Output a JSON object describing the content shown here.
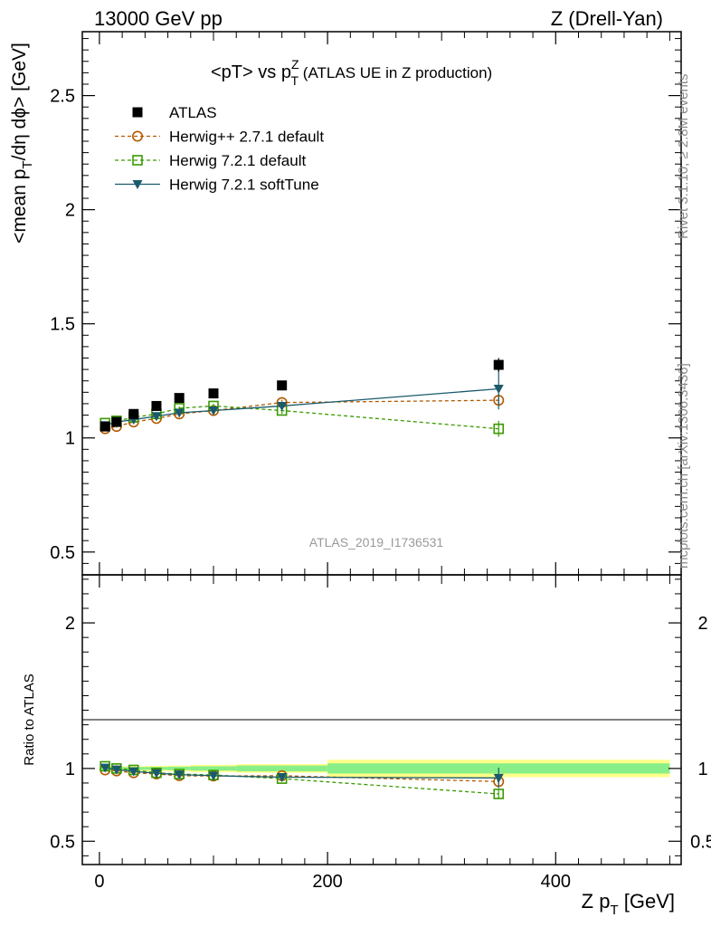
{
  "header": {
    "left": "13000 GeV pp",
    "right": "Z (Drell-Yan)"
  },
  "side_text": {
    "rivet": "Rivet 3.1.10, ≥ 2.8M events",
    "mcplots": "mcplots.cern.ch [arXiv:1306.3436]"
  },
  "chart_data": {
    "type": "scatter",
    "title_main": "<pT> vs p",
    "title_sup": "Z",
    "title_sub": "T",
    "title_paren": " (ATLAS UE in Z production)",
    "watermark": "ATLAS_2019_I1736531",
    "ylabel": {
      "pre": "<mean p",
      "sub": "T",
      "post": "/dη dϕ> [GeV]"
    },
    "ratio_ylabel": "Ratio to ATLAS",
    "xlabel": {
      "pre": "Z p",
      "sub": "T",
      "post": " [GeV]"
    },
    "xlim": [
      -15,
      510
    ],
    "ylim": [
      0.4,
      2.78
    ],
    "ratio_ylim": [
      0.34,
      2.33
    ],
    "x_ticks": [
      0,
      200,
      400
    ],
    "x_tick_labels": [
      "0",
      "200",
      "400"
    ],
    "y_ticks": [
      0.5,
      1,
      1.5,
      2,
      2.5
    ],
    "y_tick_labels": [
      "0.5",
      "1",
      "1.5",
      "2",
      "2.5"
    ],
    "ratio_ticks": [
      0.5,
      1,
      2
    ],
    "ratio_tick_labels": [
      "0.5",
      "1",
      "2"
    ],
    "x": [
      5,
      15,
      30,
      50,
      70,
      100,
      160,
      350
    ],
    "x_bins": [
      [
        0,
        10
      ],
      [
        10,
        20
      ],
      [
        20,
        40
      ],
      [
        40,
        60
      ],
      [
        60,
        80
      ],
      [
        80,
        120
      ],
      [
        120,
        200
      ],
      [
        200,
        500
      ]
    ],
    "data_band": {
      "stat": [
        0.01,
        0.01,
        0.01,
        0.01,
        0.012,
        0.015,
        0.02,
        0.035
      ],
      "total": [
        0.015,
        0.015,
        0.015,
        0.018,
        0.02,
        0.025,
        0.03,
        0.06
      ]
    },
    "series": [
      {
        "name": "ATLAS",
        "values": [
          1.05,
          1.07,
          1.105,
          1.14,
          1.175,
          1.195,
          1.23,
          1.32
        ],
        "errors": [
          0.01,
          0.01,
          0.01,
          0.01,
          0.01,
          0.015,
          0.02,
          0.03
        ],
        "color": "#000000",
        "marker": "filled-square",
        "line": "none"
      },
      {
        "name": "Herwig++ 2.7.1 default",
        "values": [
          1.04,
          1.05,
          1.07,
          1.085,
          1.105,
          1.12,
          1.155,
          1.165
        ],
        "errors": [
          0.005,
          0.005,
          0.005,
          0.006,
          0.007,
          0.008,
          0.012,
          0.025
        ],
        "ratio": [
          0.99,
          0.983,
          0.97,
          0.962,
          0.95,
          0.948,
          0.95,
          0.91
        ],
        "ratio_errors": [
          0.005,
          0.005,
          0.005,
          0.006,
          0.007,
          0.008,
          0.01,
          0.025
        ],
        "color": "#b35900",
        "marker": "open-circle",
        "line": "dashed"
      },
      {
        "name": "Herwig 7.2.1 default",
        "values": [
          1.065,
          1.075,
          1.09,
          1.105,
          1.13,
          1.14,
          1.12,
          1.04
        ],
        "errors": [
          0.005,
          0.005,
          0.006,
          0.006,
          0.008,
          0.01,
          0.015,
          0.035
        ],
        "ratio": [
          1.015,
          1.0,
          0.99,
          0.97,
          0.962,
          0.955,
          0.93,
          0.825
        ],
        "ratio_errors": [
          0.005,
          0.005,
          0.006,
          0.006,
          0.008,
          0.01,
          0.012,
          0.03
        ],
        "color": "#3a9a00",
        "marker": "open-square",
        "line": "dashed"
      },
      {
        "name": "Herwig 7.2.1 softTune",
        "values": [
          1.055,
          1.07,
          1.08,
          1.095,
          1.11,
          1.12,
          1.14,
          1.215
        ],
        "errors": [
          0.005,
          0.005,
          0.005,
          0.006,
          0.007,
          0.008,
          0.012,
          0.09
        ],
        "ratio": [
          1.005,
          0.992,
          0.98,
          0.967,
          0.958,
          0.95,
          0.94,
          0.935
        ],
        "ratio_errors": [
          0.005,
          0.005,
          0.005,
          0.006,
          0.007,
          0.008,
          0.012,
          0.07
        ],
        "color": "#1a5a6b",
        "marker": "filled-triangle-down",
        "line": "solid"
      }
    ],
    "colors": {
      "band_inner": "#88ee88",
      "band_outer": "#ffff88"
    },
    "legend": "top-left",
    "grid": false
  }
}
